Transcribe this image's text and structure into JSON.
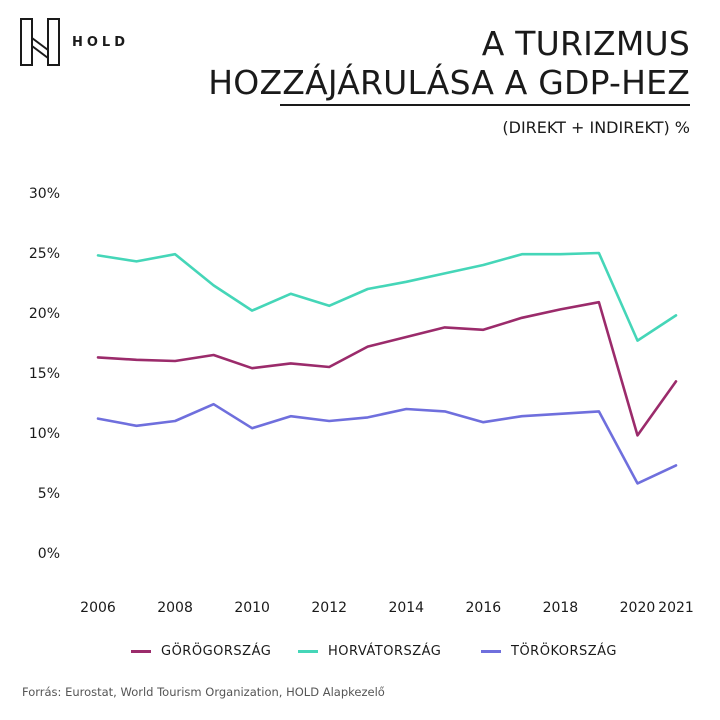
{
  "brand": {
    "logo_text": "HOLD"
  },
  "header": {
    "title_lines": [
      "A TURIZMUS",
      "HOZZÁJÁRULÁSA A GDP-HEZ"
    ],
    "subtitle": "(DIREKT + INDIREKT) %"
  },
  "source": "Forrás: Eurostat, World Tourism Organization, HOLD Alapkezelő",
  "colors": {
    "greece": "#9b2b6b",
    "croatia": "#45d6b8",
    "turkey": "#6f6fdd",
    "text": "#1a1a1a"
  },
  "chart_data": {
    "type": "line",
    "title": "A TURIZMUS HOZZÁJÁRULÁSA A GDP-HEZ",
    "subtitle": "(DIREKT + INDIREKT) %",
    "x": [
      2006,
      2007,
      2008,
      2009,
      2010,
      2011,
      2012,
      2013,
      2014,
      2015,
      2016,
      2017,
      2018,
      2019,
      2020,
      2021
    ],
    "x_tick_labels": [
      "2006",
      "2008",
      "2010",
      "2012",
      "2014",
      "2016",
      "2018",
      "2020",
      "2021"
    ],
    "x_ticks": [
      2006,
      2008,
      2010,
      2012,
      2014,
      2016,
      2018,
      2020,
      2021
    ],
    "y_tick_labels": [
      "30%",
      "25%",
      "20%",
      "15%",
      "10%",
      "5%",
      "0%"
    ],
    "y_ticks": [
      30,
      25,
      20,
      15,
      10,
      5,
      0
    ],
    "ylim": [
      0,
      30
    ],
    "grid": false,
    "legend_position": "bottom",
    "series": [
      {
        "name": "GÖRÖGORSZÁG",
        "color": "#9b2b6b",
        "values": [
          16.3,
          16.1,
          16.0,
          16.5,
          15.4,
          15.8,
          15.5,
          17.2,
          18.0,
          18.8,
          18.6,
          19.6,
          20.3,
          20.9,
          9.8,
          14.3
        ]
      },
      {
        "name": "HORVÁTORSZÁG",
        "color": "#45d6b8",
        "values": [
          24.8,
          24.3,
          24.9,
          22.3,
          20.2,
          21.6,
          20.6,
          22.0,
          22.6,
          23.3,
          24.0,
          24.9,
          24.9,
          25.0,
          17.7,
          19.8
        ]
      },
      {
        "name": "TÖRÖKORSZÁG",
        "color": "#6f6fdd",
        "values": [
          11.2,
          10.6,
          11.0,
          12.4,
          10.4,
          11.4,
          11.0,
          11.3,
          12.0,
          11.8,
          10.9,
          11.4,
          11.6,
          11.8,
          5.8,
          7.3
        ]
      }
    ]
  }
}
